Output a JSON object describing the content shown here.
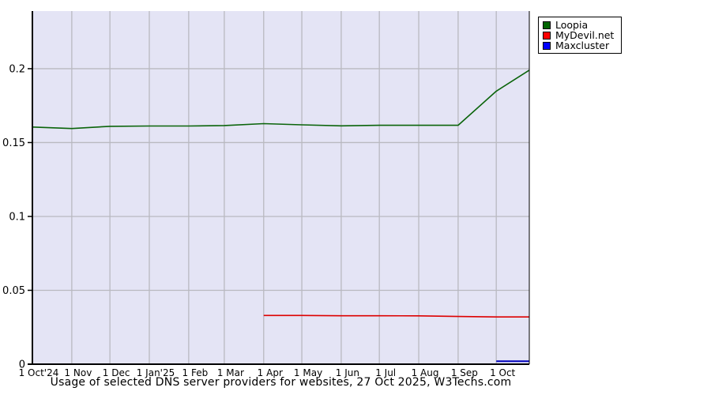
{
  "title": "Usage of selected DNS server providers for websites, 27 Oct 2025, W3Techs.com",
  "legend": {
    "items": [
      {
        "label": "Loopia",
        "swatch_color": "#006400"
      },
      {
        "label": "MyDevil.net",
        "swatch_color": "#ff0000"
      },
      {
        "label": "Maxcluster",
        "swatch_color": "#0000ff"
      }
    ]
  },
  "colors": {
    "plot_background": "#e4e4f5",
    "gridline": "#b9b9c0",
    "axis": "#000000",
    "page_background": "#ffffff",
    "text": "#000000"
  },
  "chart_data": {
    "type": "line",
    "title": "Usage of selected DNS server providers for websites, 27 Oct 2025, W3Techs.com",
    "xlabel": "",
    "ylabel": "",
    "x_unit": "days since 1 Oct 2024",
    "x_domain": [
      0,
      391
    ],
    "ylim": [
      0,
      0.239
    ],
    "grid": true,
    "legend_position": "top-right-outside",
    "y_ticks": [
      {
        "v": 0,
        "label": "0"
      },
      {
        "v": 0.05,
        "label": "0.05"
      },
      {
        "v": 0.1,
        "label": "0.1"
      },
      {
        "v": 0.15,
        "label": "0.15"
      },
      {
        "v": 0.2,
        "label": "0.2"
      }
    ],
    "x_ticks": [
      {
        "d": 0,
        "label": "1 Oct'24"
      },
      {
        "d": 31,
        "label": "1 Nov"
      },
      {
        "d": 61,
        "label": "1 Dec"
      },
      {
        "d": 92,
        "label": "1 Jan'25"
      },
      {
        "d": 123,
        "label": "1 Feb"
      },
      {
        "d": 151,
        "label": "1 Mar"
      },
      {
        "d": 182,
        "label": "1 Apr"
      },
      {
        "d": 212,
        "label": "1 May"
      },
      {
        "d": 243,
        "label": "1 Jun"
      },
      {
        "d": 273,
        "label": "1 Jul"
      },
      {
        "d": 304,
        "label": "1 Aug"
      },
      {
        "d": 335,
        "label": "1 Sep"
      },
      {
        "d": 365,
        "label": "1 Oct"
      }
    ],
    "series": [
      {
        "name": "Loopia",
        "color": "#0a640a",
        "stroke_width": 1.6,
        "points": [
          [
            0,
            0.1605
          ],
          [
            31,
            0.1595
          ],
          [
            61,
            0.161
          ],
          [
            92,
            0.1612
          ],
          [
            123,
            0.1612
          ],
          [
            151,
            0.1615
          ],
          [
            182,
            0.1628
          ],
          [
            212,
            0.162
          ],
          [
            243,
            0.1613
          ],
          [
            273,
            0.1617
          ],
          [
            304,
            0.1617
          ],
          [
            335,
            0.1617
          ],
          [
            365,
            0.1848
          ],
          [
            391,
            0.199
          ]
        ]
      },
      {
        "name": "MyDevil.net",
        "color": "#dd0000",
        "stroke_width": 1.6,
        "points": [
          [
            182,
            0.033
          ],
          [
            212,
            0.033
          ],
          [
            243,
            0.0328
          ],
          [
            273,
            0.0328
          ],
          [
            304,
            0.0327
          ],
          [
            335,
            0.0323
          ],
          [
            365,
            0.032
          ],
          [
            391,
            0.032
          ]
        ]
      },
      {
        "name": "Maxcluster",
        "color": "#0000bb",
        "stroke_width": 2,
        "points": [
          [
            365,
            0.002
          ],
          [
            391,
            0.002
          ]
        ]
      }
    ]
  }
}
